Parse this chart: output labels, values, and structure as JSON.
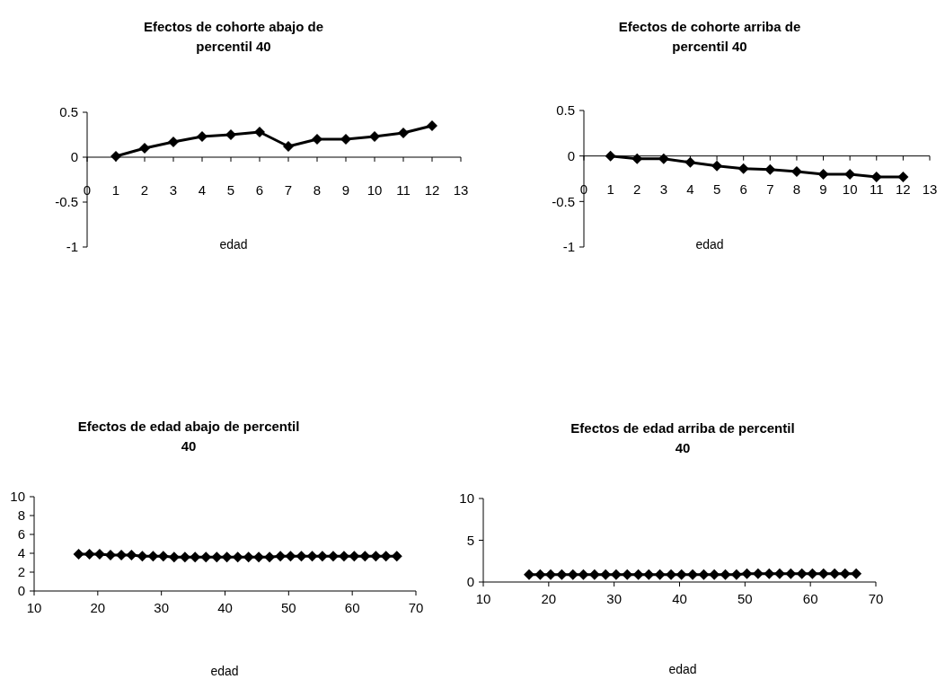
{
  "chart_data": [
    {
      "type": "line",
      "title": "Efectos de cohorte abajo de percentil 40",
      "xlabel": "edad",
      "x": [
        1,
        2,
        3,
        4,
        5,
        6,
        7,
        8,
        9,
        10,
        11,
        12
      ],
      "series": [
        {
          "color": "#000000",
          "values": [
            0.01,
            0.1,
            0.17,
            0.23,
            0.25,
            0.28,
            0.12,
            0.2,
            0.2,
            0.23,
            0.27,
            0.35
          ]
        }
      ],
      "xlim": [
        0,
        13
      ],
      "xticks": [
        0,
        1,
        2,
        3,
        4,
        5,
        6,
        7,
        8,
        9,
        10,
        11,
        12,
        13
      ],
      "ylim": [
        -1,
        0.5
      ],
      "yticks": [
        -1,
        -0.5,
        0,
        0.5
      ],
      "marker": "diamond"
    },
    {
      "type": "line",
      "title": "Efectos de cohorte arriba de percentil 40",
      "xlabel": "edad",
      "x": [
        1,
        2,
        3,
        4,
        5,
        6,
        7,
        8,
        9,
        10,
        11,
        12
      ],
      "series": [
        {
          "color": "#000000",
          "values": [
            0,
            -0.03,
            -0.03,
            -0.07,
            -0.11,
            -0.14,
            -0.15,
            -0.17,
            -0.2,
            -0.2,
            -0.23,
            -0.23
          ]
        }
      ],
      "xlim": [
        0,
        13
      ],
      "xticks": [
        0,
        1,
        2,
        3,
        4,
        5,
        6,
        7,
        8,
        9,
        10,
        11,
        12,
        13
      ],
      "ylim": [
        -1,
        0.5
      ],
      "yticks": [
        -1,
        -0.5,
        0,
        0.5
      ],
      "marker": "diamond"
    },
    {
      "type": "line",
      "title": "Efectos de edad abajo de percentil 40",
      "xlabel": "edad",
      "x": [
        17,
        18.7,
        20.3,
        22,
        23.7,
        25.3,
        27,
        28.7,
        30.3,
        32,
        33.7,
        35.3,
        37,
        38.7,
        40.3,
        42,
        43.7,
        45.3,
        47,
        48.7,
        50.3,
        52,
        53.7,
        55.3,
        57,
        58.7,
        60.3,
        62,
        63.7,
        65.3,
        67
      ],
      "series": [
        {
          "color": "#000000",
          "values": [
            3.9,
            3.9,
            3.9,
            3.8,
            3.8,
            3.8,
            3.7,
            3.7,
            3.7,
            3.6,
            3.6,
            3.6,
            3.6,
            3.6,
            3.6,
            3.6,
            3.6,
            3.6,
            3.6,
            3.7,
            3.7,
            3.7,
            3.7,
            3.7,
            3.7,
            3.7,
            3.7,
            3.7,
            3.7,
            3.7,
            3.7
          ]
        }
      ],
      "xlim": [
        10,
        70
      ],
      "xticks": [
        10,
        20,
        30,
        40,
        50,
        60,
        70
      ],
      "ylim": [
        0,
        10
      ],
      "yticks": [
        0,
        2,
        4,
        6,
        8,
        10
      ],
      "marker": "diamond"
    },
    {
      "type": "line",
      "title": "Efectos de edad arriba de percentil 40",
      "xlabel": "edad",
      "x": [
        17,
        18.7,
        20.3,
        22,
        23.7,
        25.3,
        27,
        28.7,
        30.3,
        32,
        33.7,
        35.3,
        37,
        38.7,
        40.3,
        42,
        43.7,
        45.3,
        47,
        48.7,
        50.3,
        52,
        53.7,
        55.3,
        57,
        58.7,
        60.3,
        62,
        63.7,
        65.3,
        67
      ],
      "series": [
        {
          "color": "#000000",
          "values": [
            0.9,
            0.9,
            0.9,
            0.9,
            0.9,
            0.9,
            0.9,
            0.9,
            0.9,
            0.9,
            0.9,
            0.9,
            0.9,
            0.9,
            0.9,
            0.9,
            0.9,
            0.9,
            0.9,
            0.9,
            1,
            1,
            1,
            1,
            1,
            1,
            1,
            1,
            1,
            1,
            1
          ]
        }
      ],
      "xlim": [
        10,
        70
      ],
      "xticks": [
        10,
        20,
        30,
        40,
        50,
        60,
        70
      ],
      "ylim": [
        0,
        10
      ],
      "yticks": [
        0,
        5,
        10
      ],
      "marker": "diamond"
    }
  ]
}
